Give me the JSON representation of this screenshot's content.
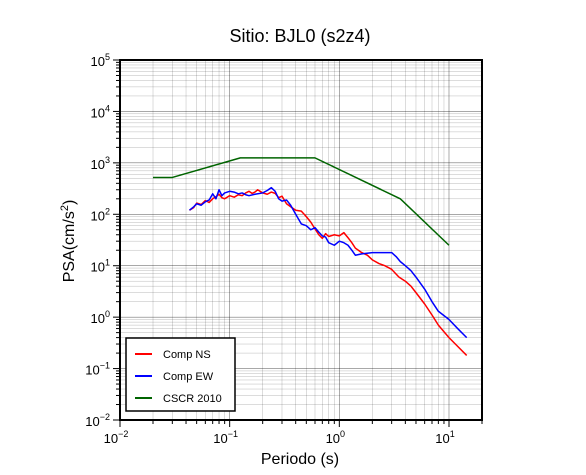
{
  "chart_data": {
    "type": "line",
    "title": "Sitio: BJL0 (s2z4)",
    "xlabel": "Periodo (s)",
    "ylabel_base": "PSA(cm/s",
    "ylabel_sup": "2",
    "ylabel_end": ")",
    "x_scale": "log",
    "y_scale": "log",
    "xlim": [
      0.01,
      20
    ],
    "ylim": [
      0.01,
      100000
    ],
    "grid": true,
    "legend_position": "bottom-left",
    "x_ticks": [
      {
        "base": "10",
        "exp": "−2",
        "value": 0.01
      },
      {
        "base": "10",
        "exp": "−1",
        "value": 0.1
      },
      {
        "base": "10",
        "exp": "0",
        "value": 1
      },
      {
        "base": "10",
        "exp": "1",
        "value": 10
      }
    ],
    "y_ticks": [
      {
        "base": "10",
        "exp": "−2",
        "value": 0.01
      },
      {
        "base": "10",
        "exp": "−1",
        "value": 0.1
      },
      {
        "base": "10",
        "exp": "0",
        "value": 1
      },
      {
        "base": "10",
        "exp": "1",
        "value": 10
      },
      {
        "base": "10",
        "exp": "2",
        "value": 100
      },
      {
        "base": "10",
        "exp": "3",
        "value": 1000
      },
      {
        "base": "10",
        "exp": "4",
        "value": 10000
      },
      {
        "base": "10",
        "exp": "5",
        "value": 100000
      }
    ],
    "series": [
      {
        "name": "Comp NS",
        "color": "#ff0000",
        "points": [
          [
            0.043,
            120
          ],
          [
            0.047,
            135
          ],
          [
            0.05,
            165
          ],
          [
            0.055,
            155
          ],
          [
            0.06,
            185
          ],
          [
            0.065,
            170
          ],
          [
            0.07,
            200
          ],
          [
            0.075,
            220
          ],
          [
            0.08,
            245
          ],
          [
            0.085,
            210
          ],
          [
            0.09,
            200
          ],
          [
            0.1,
            230
          ],
          [
            0.11,
            215
          ],
          [
            0.12,
            240
          ],
          [
            0.13,
            230
          ],
          [
            0.14,
            260
          ],
          [
            0.15,
            280
          ],
          [
            0.16,
            255
          ],
          [
            0.17,
            270
          ],
          [
            0.18,
            300
          ],
          [
            0.2,
            260
          ],
          [
            0.22,
            245
          ],
          [
            0.24,
            270
          ],
          [
            0.26,
            255
          ],
          [
            0.28,
            210
          ],
          [
            0.3,
            225
          ],
          [
            0.33,
            160
          ],
          [
            0.36,
            140
          ],
          [
            0.4,
            120
          ],
          [
            0.45,
            115
          ],
          [
            0.5,
            90
          ],
          [
            0.55,
            70
          ],
          [
            0.6,
            52
          ],
          [
            0.65,
            40
          ],
          [
            0.7,
            34
          ],
          [
            0.75,
            42
          ],
          [
            0.8,
            37
          ],
          [
            0.9,
            40
          ],
          [
            1.0,
            38
          ],
          [
            1.1,
            44
          ],
          [
            1.2,
            35
          ],
          [
            1.3,
            28
          ],
          [
            1.4,
            22
          ],
          [
            1.6,
            18
          ],
          [
            1.8,
            16
          ],
          [
            2.0,
            13
          ],
          [
            2.3,
            11
          ],
          [
            2.6,
            10
          ],
          [
            3.0,
            8.5
          ],
          [
            3.5,
            6
          ],
          [
            4.0,
            5
          ],
          [
            4.5,
            4
          ],
          [
            5.0,
            3
          ],
          [
            6.0,
            1.8
          ],
          [
            7.0,
            1.1
          ],
          [
            8.0,
            0.7
          ],
          [
            10.0,
            0.4
          ],
          [
            12.0,
            0.27
          ],
          [
            14.5,
            0.18
          ]
        ]
      },
      {
        "name": "Comp EW",
        "color": "#0000ff",
        "points": [
          [
            0.043,
            120
          ],
          [
            0.047,
            140
          ],
          [
            0.05,
            160
          ],
          [
            0.055,
            150
          ],
          [
            0.06,
            175
          ],
          [
            0.065,
            190
          ],
          [
            0.07,
            250
          ],
          [
            0.075,
            200
          ],
          [
            0.08,
            300
          ],
          [
            0.085,
            230
          ],
          [
            0.09,
            260
          ],
          [
            0.1,
            280
          ],
          [
            0.11,
            270
          ],
          [
            0.12,
            250
          ],
          [
            0.13,
            260
          ],
          [
            0.14,
            240
          ],
          [
            0.15,
            230
          ],
          [
            0.17,
            245
          ],
          [
            0.2,
            260
          ],
          [
            0.22,
            290
          ],
          [
            0.24,
            330
          ],
          [
            0.26,
            280
          ],
          [
            0.28,
            200
          ],
          [
            0.3,
            180
          ],
          [
            0.33,
            190
          ],
          [
            0.36,
            150
          ],
          [
            0.4,
            100
          ],
          [
            0.45,
            65
          ],
          [
            0.5,
            60
          ],
          [
            0.55,
            50
          ],
          [
            0.6,
            55
          ],
          [
            0.65,
            45
          ],
          [
            0.7,
            38
          ],
          [
            0.75,
            36
          ],
          [
            0.8,
            28
          ],
          [
            0.9,
            25
          ],
          [
            1.0,
            30
          ],
          [
            1.1,
            28
          ],
          [
            1.2,
            25
          ],
          [
            1.3,
            20
          ],
          [
            1.4,
            16
          ],
          [
            1.6,
            17
          ],
          [
            2.0,
            18
          ],
          [
            2.5,
            18
          ],
          [
            3.0,
            18
          ],
          [
            3.3,
            15
          ],
          [
            3.6,
            12
          ],
          [
            4.0,
            10
          ],
          [
            4.5,
            8
          ],
          [
            5.0,
            6
          ],
          [
            6.0,
            3.5
          ],
          [
            7.0,
            2
          ],
          [
            8.0,
            1.3
          ],
          [
            10.0,
            0.9
          ],
          [
            12.0,
            0.6
          ],
          [
            14.5,
            0.4
          ]
        ]
      },
      {
        "name": "CSCR 2010",
        "color": "#006400",
        "points": [
          [
            0.02,
            520
          ],
          [
            0.03,
            520
          ],
          [
            0.125,
            1250
          ],
          [
            0.6,
            1250
          ],
          [
            3.6,
            200
          ],
          [
            10.0,
            25
          ]
        ]
      }
    ]
  }
}
